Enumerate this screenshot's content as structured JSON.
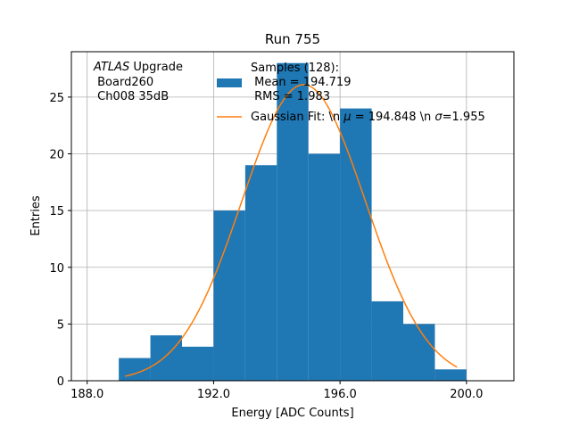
{
  "chart_data": {
    "type": "bar",
    "title": "Run 755",
    "xlabel": "Energy [ADC Counts]",
    "ylabel": "Entries",
    "xlim": [
      187.5,
      201.5
    ],
    "ylim": [
      0,
      29
    ],
    "grid": true,
    "x_ticks": [
      188.0,
      192.0,
      196.0,
      200.0
    ],
    "x_tick_labels": [
      "188.0",
      "192.0",
      "196.0",
      "200.0"
    ],
    "y_ticks": [
      0,
      5,
      10,
      15,
      20,
      25
    ],
    "y_tick_labels": [
      "0",
      "5",
      "10",
      "15",
      "20",
      "25"
    ],
    "histogram": {
      "bin_edges": [
        189,
        190,
        191,
        192,
        193,
        194,
        195,
        196,
        197,
        198,
        199,
        200
      ],
      "counts": [
        2,
        4,
        3,
        15,
        19,
        28,
        20,
        24,
        7,
        5,
        1
      ],
      "color": "#1f77b4"
    },
    "fit_curve": {
      "mu": 194.848,
      "sigma": 1.955,
      "amplitude": 26.1,
      "x_range": [
        189.2,
        199.7
      ],
      "color": "#ff7f0e"
    },
    "annotation": {
      "line1_italic": "ATLAS",
      "line1_rest": " Upgrade",
      "line2": " Board260",
      "line3": " Ch008 35dB"
    },
    "legend": {
      "placement": "top-right",
      "samples_line1": "Samples (128):",
      "samples_line2": " Mean = 194.719",
      "samples_line3": " RMS = 1.983",
      "fit_prefix": "Gaussian Fit: \\n ",
      "fit_mu_symbol": "μ",
      "fit_middle": " = 194.848 \\n ",
      "fit_sigma_symbol": "σ",
      "fit_suffix": "=1.955"
    }
  }
}
